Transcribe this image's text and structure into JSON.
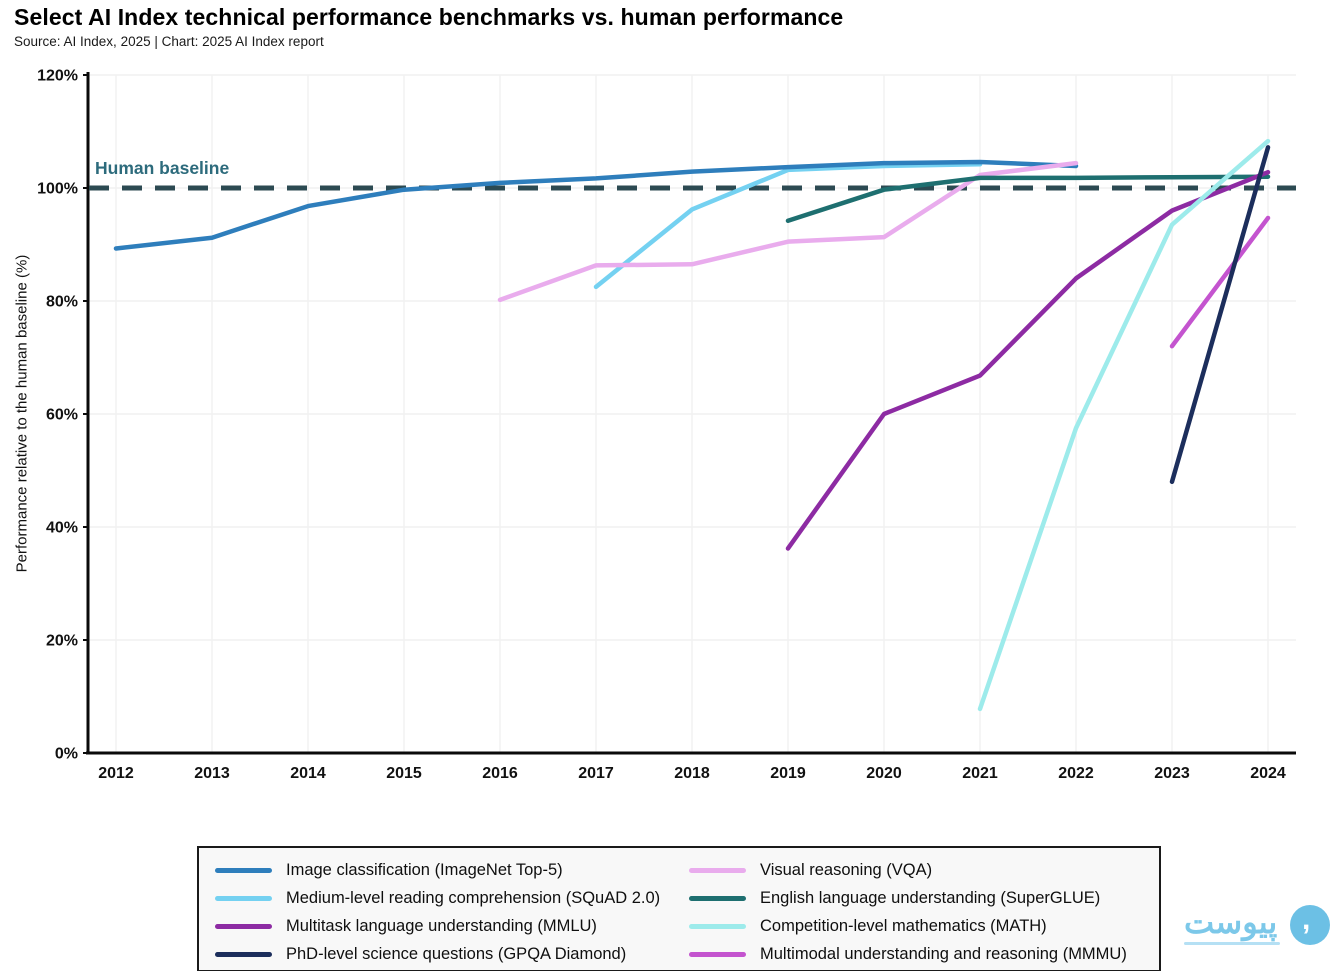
{
  "header": {
    "title": "Select AI Index technical performance benchmarks vs. human performance",
    "source_line": "Source: AI Index, 2025 | Chart: 2025 AI Index report"
  },
  "chart_data": {
    "type": "line",
    "title": "Select AI Index technical performance benchmarks vs. human performance",
    "xlabel": "",
    "ylabel": "Performance relative to the human baseline (%)",
    "xlim": [
      2012,
      2024
    ],
    "ylim": [
      0,
      120
    ],
    "grid": true,
    "legend_position": "bottom",
    "x_ticks": [
      2012,
      2013,
      2014,
      2015,
      2016,
      2017,
      2018,
      2019,
      2020,
      2021,
      2022,
      2023,
      2024
    ],
    "y_ticks": [
      0,
      20,
      40,
      60,
      80,
      100,
      120
    ],
    "y_tick_labels": [
      "0%",
      "20%",
      "40%",
      "60%",
      "80%",
      "100%",
      "120%"
    ],
    "baseline": {
      "label": "Human baseline",
      "value": 100,
      "color": "#2c4a52",
      "label_color": "#2d6b7c"
    },
    "grid_color": "#f1f1f1",
    "axis_color": "#0a0a0a",
    "series": [
      {
        "name": "Image classification (ImageNet Top-5)",
        "color": "#2e7ebc",
        "x": [
          2012,
          2013,
          2014,
          2015,
          2016,
          2017,
          2018,
          2019,
          2020,
          2021,
          2022
        ],
        "values": [
          89.3,
          91.2,
          96.8,
          99.7,
          100.9,
          101.7,
          102.9,
          103.7,
          104.4,
          104.6,
          103.9
        ]
      },
      {
        "name": "Medium-level reading comprehension (SQuAD 2.0)",
        "color": "#74d1f1",
        "x": [
          2017,
          2018,
          2019,
          2020,
          2021
        ],
        "values": [
          82.5,
          96.2,
          103.2,
          103.9,
          104.2
        ]
      },
      {
        "name": "Multitask language understanding (MMLU)",
        "color": "#8d2ba3",
        "x": [
          2019,
          2020,
          2021,
          2022,
          2023,
          2024
        ],
        "values": [
          36.2,
          60.0,
          66.8,
          84.0,
          96.0,
          102.8
        ]
      },
      {
        "name": "PhD-level science questions (GPQA Diamond)",
        "color": "#1c2e5c",
        "x": [
          2023,
          2024
        ],
        "values": [
          48.0,
          107.2
        ]
      },
      {
        "name": "Visual reasoning (VQA)",
        "color": "#e9aced",
        "x": [
          2016,
          2017,
          2018,
          2019,
          2020,
          2021,
          2022
        ],
        "values": [
          80.2,
          86.3,
          86.5,
          90.5,
          91.3,
          102.3,
          104.4
        ]
      },
      {
        "name": "English language understanding (SuperGLUE)",
        "color": "#1e6f70",
        "x": [
          2019,
          2020,
          2021,
          2022,
          2023,
          2024
        ],
        "values": [
          94.2,
          99.7,
          101.8,
          101.8,
          101.9,
          102.0
        ]
      },
      {
        "name": "Competition-level mathematics (MATH)",
        "color": "#9debeb",
        "x": [
          2021,
          2022,
          2023,
          2024
        ],
        "values": [
          7.8,
          57.5,
          93.5,
          108.3
        ]
      },
      {
        "name": "Multimodal understanding and reasoning (MMMU)",
        "color": "#c454cf",
        "x": [
          2023,
          2024
        ],
        "values": [
          72.0,
          94.7
        ]
      }
    ],
    "draw_order": [
      1,
      0,
      4,
      5,
      2,
      6,
      7,
      3
    ]
  },
  "watermark": {
    "text": "پیوست"
  }
}
